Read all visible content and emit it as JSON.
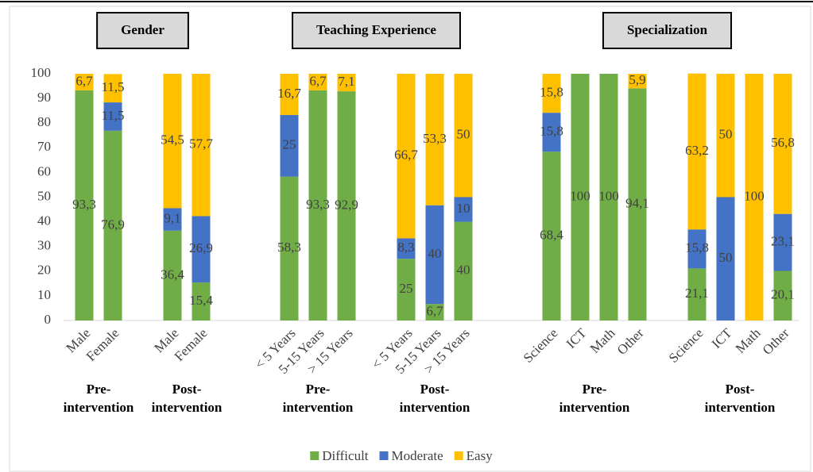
{
  "chart_data": {
    "type": "stacked_bar",
    "panels": [
      {
        "title": "Gender",
        "groups": [
          {
            "label": [
              "Pre-",
              "intervention"
            ],
            "categories": [
              "Male",
              "Female"
            ]
          },
          {
            "label": [
              "Post-",
              "intervention"
            ],
            "categories": [
              "Male",
              "Female"
            ]
          }
        ]
      },
      {
        "title": "Teaching Experience",
        "groups": [
          {
            "label": [
              "Pre-",
              "intervention"
            ],
            "categories": [
              "< 5 Years",
              "5-15 Years",
              "> 15 Years"
            ]
          },
          {
            "label": [
              "Post-",
              "intervention"
            ],
            "categories": [
              "< 5 Years",
              "5-15 Years",
              "> 15 Years"
            ]
          }
        ]
      },
      {
        "title": "Specialization",
        "groups": [
          {
            "label": [
              "Pre-",
              "intervention"
            ],
            "categories": [
              "Science",
              "ICT",
              "Math",
              "Other"
            ]
          },
          {
            "label": [
              "Post-",
              "intervention"
            ],
            "categories": [
              "Science",
              "ICT",
              "Math",
              "Other"
            ]
          }
        ]
      }
    ],
    "series": [
      {
        "name": "Difficult",
        "color": "#70ad47",
        "values": [
          93.3,
          76.9,
          36.4,
          15.4,
          58.3,
          93.3,
          92.9,
          25,
          6.7,
          40,
          68.4,
          100,
          100,
          94.1,
          21.1,
          null,
          null,
          20.1
        ],
        "value_labels": [
          "93,3",
          "76,9",
          "36,4",
          "15,4",
          "58,3",
          "93,3",
          "92,9",
          "25",
          "6,7",
          "40",
          "68,4",
          "100",
          "100",
          "94,1",
          "21,1",
          null,
          null,
          "20,1"
        ]
      },
      {
        "name": "Moderate",
        "color": "#4472c4",
        "values": [
          null,
          11.5,
          9.1,
          26.9,
          25,
          null,
          null,
          8.3,
          40,
          10,
          15.8,
          null,
          null,
          null,
          15.8,
          50,
          null,
          23.1
        ],
        "value_labels": [
          null,
          "11,5",
          "9,1",
          "26,9",
          "25",
          null,
          null,
          "8,3",
          "40",
          "10",
          "15,8",
          null,
          null,
          null,
          "15,8",
          "50",
          null,
          "23,1"
        ]
      },
      {
        "name": "Easy",
        "color": "#ffc000",
        "values": [
          6.7,
          11.5,
          54.5,
          57.7,
          16.7,
          6.7,
          7.1,
          66.7,
          53.3,
          50,
          15.8,
          null,
          null,
          5.9,
          63.2,
          50,
          100,
          56.8
        ],
        "value_labels": [
          "6,7",
          "11,5",
          "54,5",
          "57,7",
          "16,7",
          "6,7",
          "7,1",
          "66,7",
          "53,3",
          "50",
          "15,8",
          null,
          null,
          "5,9",
          "63,2",
          "50",
          "100",
          "56,8"
        ]
      }
    ],
    "ylim": [
      0,
      100
    ],
    "yticks": [
      0,
      10,
      20,
      30,
      40,
      50,
      60,
      70,
      80,
      90,
      100
    ],
    "legend": "bottom"
  }
}
